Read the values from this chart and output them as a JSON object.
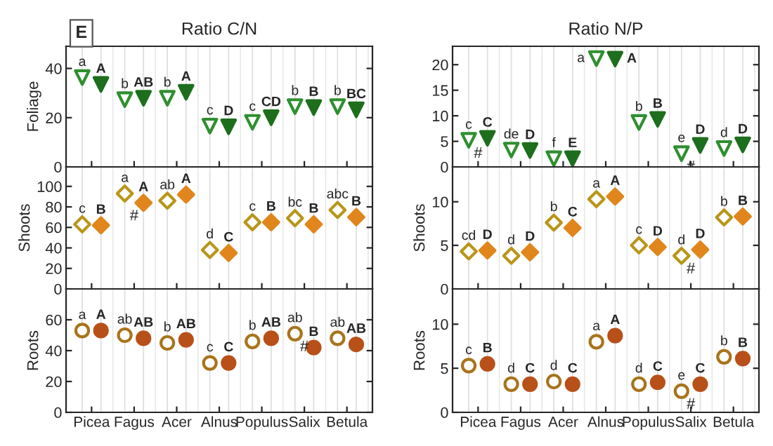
{
  "chart_data": [
    {
      "type": "scatter",
      "title": "Ratio C/N",
      "ylabel": "Foliage",
      "categories": [
        "Picea",
        "Fagus",
        "Acer",
        "Alnus",
        "Populus",
        "Salix",
        "Betula"
      ],
      "ylim": [
        0,
        49
      ],
      "yticks": [
        0,
        20,
        40
      ],
      "tick_labels": "y",
      "marker": "triangle",
      "grid": "x",
      "annotations": [
        "E"
      ],
      "series": [
        {
          "color": "#2f8f2f",
          "values": [
            36.3,
            27.3,
            27.9,
            16.6,
            18.1,
            24.5,
            24.5
          ],
          "value_labels": [
            "a",
            "b",
            "b",
            "c",
            "c",
            "b",
            "b"
          ]
        },
        {
          "color": "#1d6e1d",
          "values": [
            33.5,
            27.9,
            30.3,
            16.3,
            20.0,
            24.1,
            23.2
          ],
          "value_labels": [
            "A",
            "AB",
            "A",
            "D",
            "CD",
            "B",
            "BC"
          ]
        }
      ]
    },
    {
      "type": "scatter",
      "title": "Ratio N/P",
      "categories": [
        "Picea",
        "Fagus",
        "Acer",
        "Alnus",
        "Populus",
        "Salix",
        "Betula"
      ],
      "ylim": [
        0,
        23.6
      ],
      "yticks": [
        0,
        5,
        10,
        15,
        20
      ],
      "tick_labels": "y",
      "marker": "triangle",
      "grid": "x",
      "annotations": [
        {
          "text": "#",
          "x": "Picea",
          "y": 5.2
        },
        {
          "text": "#",
          "x": "Salix",
          "y": 2.6
        }
      ],
      "series": [
        {
          "color": "#2f8f2f",
          "values": [
            5.2,
            3.3,
            1.6,
            21.2,
            8.7,
            2.6,
            3.6
          ],
          "value_labels": [
            "c",
            "de",
            "f",
            "a",
            "b",
            "e",
            "d"
          ]
        },
        {
          "color": "#1d6e1d",
          "values": [
            5.6,
            3.2,
            1.6,
            21.1,
            9.3,
            4.2,
            4.3
          ],
          "value_labels": [
            "C",
            "D",
            "E",
            "A",
            "B",
            "D",
            "D"
          ]
        }
      ]
    },
    {
      "type": "scatter",
      "ylabel": "Shoots",
      "categories": [
        "Picea",
        "Fagus",
        "Acer",
        "Alnus",
        "Populus",
        "Salix",
        "Betula"
      ],
      "ylim": [
        0,
        119
      ],
      "yticks": [
        0,
        20,
        40,
        60,
        80,
        100
      ],
      "tick_labels": "y",
      "marker": "diamond",
      "grid": "x",
      "annotations": [
        {
          "text": "#",
          "x": "Fagus",
          "y": 84
        }
      ],
      "series": [
        {
          "color": "#b8961a",
          "values": [
            63,
            93,
            86,
            38,
            65,
            69,
            77
          ],
          "value_labels": [
            "c",
            "a",
            "ab",
            "d",
            "c",
            "bc",
            "abc"
          ]
        },
        {
          "color": "#e0861c",
          "values": [
            62,
            84,
            92,
            35,
            65,
            63,
            70
          ],
          "value_labels": [
            "B",
            "A",
            "A",
            "C",
            "B",
            "B",
            "B"
          ]
        }
      ]
    },
    {
      "type": "scatter",
      "ylabel": "Shoots",
      "categories": [
        "Picea",
        "Fagus",
        "Acer",
        "Alnus",
        "Populus",
        "Salix",
        "Betula"
      ],
      "ylim": [
        0,
        14
      ],
      "yticks": [
        0,
        5,
        10
      ],
      "tick_labels": "y",
      "marker": "diamond",
      "grid": "x",
      "annotations": [
        {
          "text": "#",
          "x": "Salix",
          "y": 3.8
        }
      ],
      "series": [
        {
          "color": "#b8961a",
          "values": [
            4.3,
            3.8,
            7.6,
            10.3,
            5.0,
            3.8,
            8.2
          ],
          "value_labels": [
            "cd",
            "d",
            "b",
            "a",
            "c",
            "d",
            "b"
          ]
        },
        {
          "color": "#e0861c",
          "values": [
            4.4,
            4.2,
            7.0,
            10.6,
            4.8,
            4.5,
            8.3
          ],
          "value_labels": [
            "D",
            "D",
            "C",
            "A",
            "D",
            "D",
            "B"
          ]
        }
      ]
    },
    {
      "type": "scatter",
      "ylabel": "Roots",
      "categories": [
        "Picea",
        "Fagus",
        "Acer",
        "Alnus",
        "Populus",
        "Salix",
        "Betula"
      ],
      "ylim": [
        0,
        80
      ],
      "yticks": [
        0,
        20,
        40,
        60
      ],
      "marker": "circle",
      "grid": "x",
      "annotations": [
        {
          "text": "#",
          "x": "Salix",
          "y": 51
        }
      ],
      "series": [
        {
          "color": "#a8741c",
          "values": [
            53,
            50,
            45,
            32,
            46,
            51,
            48
          ],
          "value_labels": [
            "a",
            "ab",
            "b",
            "c",
            "b",
            "ab",
            "ab"
          ]
        },
        {
          "color": "#b8501a",
          "values": [
            53,
            48,
            47,
            32,
            48,
            42,
            44
          ],
          "value_labels": [
            "A",
            "AB",
            "AB",
            "C",
            "AB",
            "B",
            "AB"
          ]
        }
      ]
    },
    {
      "type": "scatter",
      "ylabel": "Roots",
      "categories": [
        "Picea",
        "Fagus",
        "Acer",
        "Alnus",
        "Populus",
        "Salix",
        "Betula"
      ],
      "ylim": [
        0,
        14
      ],
      "yticks": [
        0,
        5,
        10
      ],
      "marker": "circle",
      "grid": "x",
      "annotations": [
        {
          "text": "#",
          "x": "Salix",
          "y": 2.4
        }
      ],
      "series": [
        {
          "color": "#a8741c",
          "values": [
            5.3,
            3.2,
            3.5,
            8.0,
            3.2,
            2.4,
            6.3
          ],
          "value_labels": [
            "c",
            "d",
            "d",
            "a",
            "d",
            "e",
            "b"
          ]
        },
        {
          "color": "#b8501a",
          "values": [
            5.5,
            3.2,
            3.2,
            8.7,
            3.4,
            3.2,
            6.1
          ],
          "value_labels": [
            "B",
            "C",
            "C",
            "A",
            "C",
            "C",
            "B"
          ]
        }
      ]
    }
  ]
}
